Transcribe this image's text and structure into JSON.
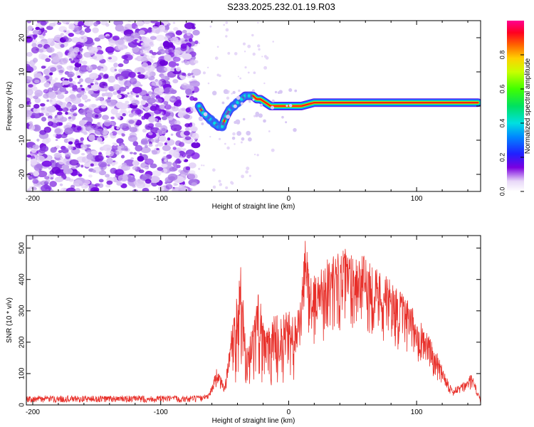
{
  "title": "S233.2025.232.01.19.R03",
  "chart_data": [
    {
      "type": "heatmap",
      "xlabel": "Height of straight line (km)",
      "ylabel": "Frequency (Hz)",
      "xlim": [
        -205,
        150
      ],
      "ylim": [
        -25,
        25
      ],
      "xticks": [
        -200,
        -100,
        0,
        100
      ],
      "yticks": [
        -20,
        -10,
        0,
        10,
        20
      ],
      "noise_region_x": [
        -205,
        -72
      ],
      "ridge": [
        {
          "x": -70,
          "y": 0
        },
        {
          "x": -67,
          "y": -2
        },
        {
          "x": -64,
          "y": -3
        },
        {
          "x": -61,
          "y": -4
        },
        {
          "x": -58,
          "y": -5
        },
        {
          "x": -55,
          "y": -6
        },
        {
          "x": -52,
          "y": -6
        },
        {
          "x": -49,
          "y": -3
        },
        {
          "x": -46,
          "y": -1
        },
        {
          "x": -43,
          "y": 0
        },
        {
          "x": -40,
          "y": 1
        },
        {
          "x": -37,
          "y": 2
        },
        {
          "x": -34,
          "y": 3
        },
        {
          "x": -31,
          "y": 3
        },
        {
          "x": -28,
          "y": 3
        },
        {
          "x": -25,
          "y": 2
        },
        {
          "x": -22,
          "y": 2
        },
        {
          "x": -18,
          "y": 1
        },
        {
          "x": -14,
          "y": 0
        },
        {
          "x": -10,
          "y": 0
        },
        {
          "x": -5,
          "y": 0
        },
        {
          "x": 0,
          "y": 0
        },
        {
          "x": 5,
          "y": 0
        },
        {
          "x": 10,
          "y": 0
        },
        {
          "x": 20,
          "y": 1
        },
        {
          "x": 40,
          "y": 1
        },
        {
          "x": 60,
          "y": 1
        },
        {
          "x": 80,
          "y": 1
        },
        {
          "x": 90,
          "y": 1
        },
        {
          "x": 100,
          "y": 1
        },
        {
          "x": 120,
          "y": 1
        },
        {
          "x": 148,
          "y": 1
        }
      ],
      "colorbar": {
        "label": "Normalized spectral amplitude",
        "ticks": [
          "0.0",
          "0.2",
          "0.4",
          "0.6",
          "0.8"
        ],
        "range": [
          0,
          1
        ]
      }
    },
    {
      "type": "line",
      "xlabel": "Height of straight line (km)",
      "ylabel": "SNR (10 * v/v)",
      "xlim": [
        -205,
        150
      ],
      "ylim": [
        0,
        540
      ],
      "xticks": [
        -200,
        -100,
        0,
        100
      ],
      "yticks": [
        0,
        100,
        200,
        300,
        400,
        500
      ],
      "color": "#e8302a",
      "envelope": [
        {
          "x": -205,
          "y": 25
        },
        {
          "x": -70,
          "y": 25
        },
        {
          "x": -62,
          "y": 40
        },
        {
          "x": -56,
          "y": 120
        },
        {
          "x": -50,
          "y": 60
        },
        {
          "x": -42,
          "y": 330
        },
        {
          "x": -37,
          "y": 450
        },
        {
          "x": -33,
          "y": 180
        },
        {
          "x": -28,
          "y": 250
        },
        {
          "x": -23,
          "y": 380
        },
        {
          "x": -18,
          "y": 240
        },
        {
          "x": -12,
          "y": 310
        },
        {
          "x": -6,
          "y": 290
        },
        {
          "x": 0,
          "y": 300
        },
        {
          "x": 6,
          "y": 280
        },
        {
          "x": 10,
          "y": 360
        },
        {
          "x": 13,
          "y": 540
        },
        {
          "x": 18,
          "y": 400
        },
        {
          "x": 30,
          "y": 470
        },
        {
          "x": 45,
          "y": 500
        },
        {
          "x": 60,
          "y": 475
        },
        {
          "x": 75,
          "y": 420
        },
        {
          "x": 90,
          "y": 350
        },
        {
          "x": 105,
          "y": 260
        },
        {
          "x": 118,
          "y": 150
        },
        {
          "x": 128,
          "y": 50
        },
        {
          "x": 138,
          "y": 75
        },
        {
          "x": 143,
          "y": 100
        },
        {
          "x": 150,
          "y": 20
        }
      ]
    }
  ]
}
